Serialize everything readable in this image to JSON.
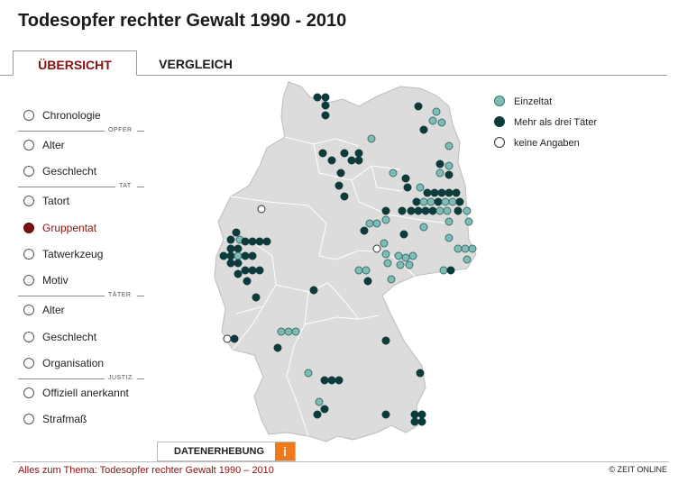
{
  "title": "Todesopfer rechter Gewalt 1990 - 2010",
  "tabs": [
    {
      "label": "ÜBERSICHT"
    },
    {
      "label": "VERGLEICH"
    }
  ],
  "sidebar": {
    "items": [
      {
        "label": "Chronologie"
      },
      {
        "label": "Alter"
      },
      {
        "label": "Geschlecht"
      },
      {
        "label": "Tatort"
      },
      {
        "label": "Gruppentat"
      },
      {
        "label": "Tatwerkzeug"
      },
      {
        "label": "Motiv"
      },
      {
        "label": "Alter"
      },
      {
        "label": "Geschlecht"
      },
      {
        "label": "Organisation"
      },
      {
        "label": "Offiziell anerkannt"
      },
      {
        "label": "Strafmaß"
      }
    ],
    "selected_label": "Gruppentat",
    "sections": {
      "opfer": "OPFER",
      "tat": "TAT",
      "taeter": "TÄTER",
      "justiz": "JUSTIZ"
    }
  },
  "legend": {
    "items": [
      {
        "label": "Einzeltat",
        "color": "#7fbcb7"
      },
      {
        "label": "Mehr als drei Täter",
        "color": "#0d3b3b"
      },
      {
        "label": "keine Angaben",
        "color": "#ffffff"
      }
    ]
  },
  "colors": {
    "accent": "#8b1010",
    "einzeltat": "#7fbcb7",
    "gruppe": "#0d3b3b",
    "keine": "#ffffff",
    "info": "#f07a1a"
  },
  "datenerhebung": {
    "label": "DATENERHEBUNG",
    "icon": "info-icon",
    "icon_glyph": "i"
  },
  "footer": {
    "link": "Alles zum Thema: Todesopfer rechter Gewalt 1990 – 2010",
    "copyright": "© ZEIT ONLINE"
  }
}
